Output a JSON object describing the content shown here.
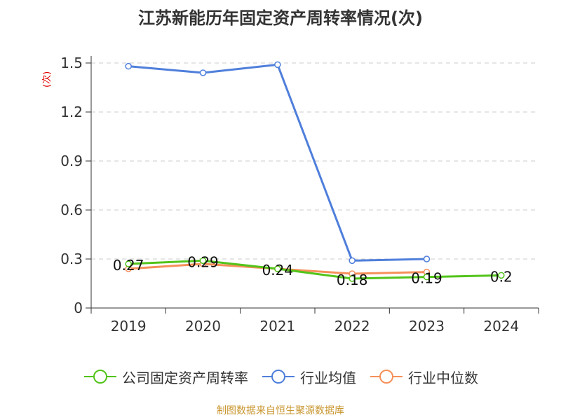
{
  "title": "江苏新能历年固定资产周转率情况(次)",
  "source": "制图数据来自恒生聚源数据库",
  "colors": {
    "company": "#52c41a",
    "industry_avg": "#4f7fdb",
    "industry_median": "#f5905a",
    "grid": "#cccccc",
    "axis": "#333333",
    "ylabel": "#e00000",
    "source": "#c8952e"
  },
  "chart_data": {
    "type": "line",
    "title": "江苏新能历年固定资产周转率情况(次)",
    "xlabel": "",
    "ylabel": "(次)",
    "categories": [
      "2019",
      "2020",
      "2021",
      "2022",
      "2023",
      "2024"
    ],
    "ylim": [
      0,
      1.5
    ],
    "yticks": [
      "0",
      "0.3",
      "0.6",
      "0.9",
      "1.2",
      "1.5"
    ],
    "grid": true,
    "legend_position": "bottom",
    "series": [
      {
        "name": "公司固定资产周转率",
        "color": "#52c41a",
        "values": [
          0.27,
          0.29,
          0.24,
          0.18,
          0.19,
          0.2
        ],
        "labels": [
          "0.27",
          "0.29",
          "0.24",
          "0.18",
          "0.19",
          "0.2"
        ]
      },
      {
        "name": "行业均值",
        "color": "#4f7fdb",
        "values": [
          1.48,
          1.44,
          1.49,
          0.29,
          0.3,
          null
        ]
      },
      {
        "name": "行业中位数",
        "color": "#f5905a",
        "values": [
          0.24,
          0.27,
          0.24,
          0.21,
          0.22,
          null
        ]
      }
    ]
  }
}
